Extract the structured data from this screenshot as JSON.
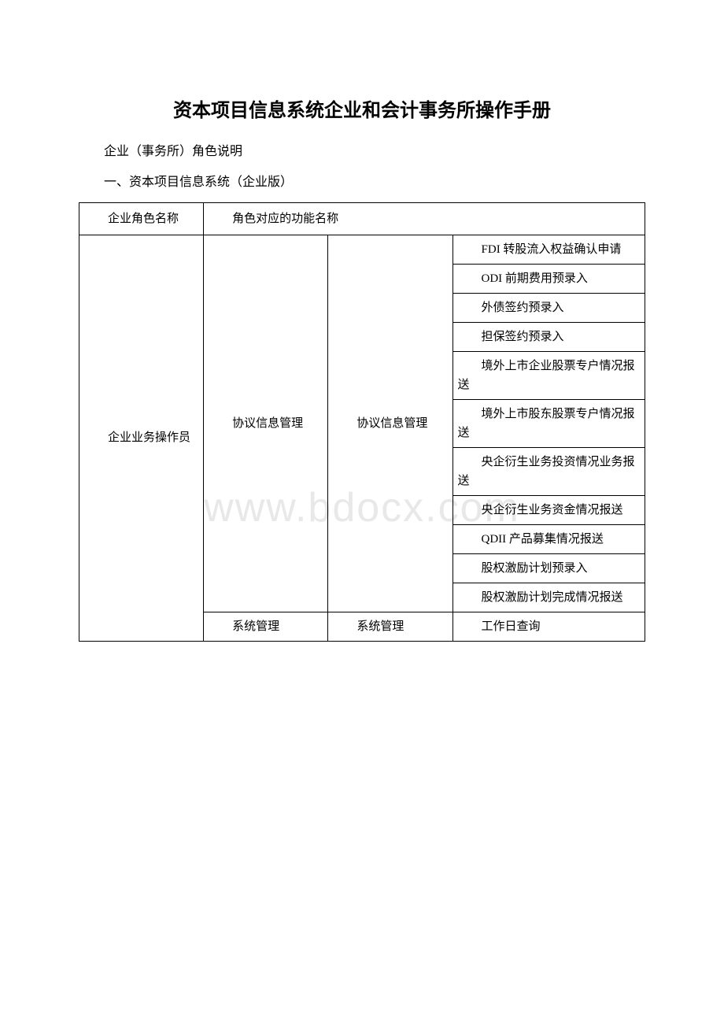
{
  "title": "资本项目信息系统企业和会计事务所操作手册",
  "subtitle": "企业（事务所）角色说明",
  "section_heading": "一、资本项目信息系统（企业版）",
  "watermark": "www.bdocx.com",
  "table": {
    "header": {
      "role_name": "企业角色名称",
      "func_name": "角色对应的功能名称"
    },
    "role": "企业业务操作员",
    "group1": {
      "func": "协议信息管理",
      "subfunc": "协议信息管理",
      "items": [
        "FDI 转股流入权益确认申请",
        "ODI 前期费用预录入",
        "外债签约预录入",
        "担保签约预录入",
        "境外上市企业股票专户情况报送",
        "境外上市股东股票专户情况报送",
        "央企衍生业务投资情况业务报送",
        "央企衍生业务资金情况报送",
        "QDII 产品募集情况报送",
        "股权激励计划预录入",
        "股权激励计划完成情况报送"
      ]
    },
    "group2": {
      "func": "系统管理",
      "subfunc": "系统管理",
      "items": [
        "工作日查询"
      ]
    }
  }
}
